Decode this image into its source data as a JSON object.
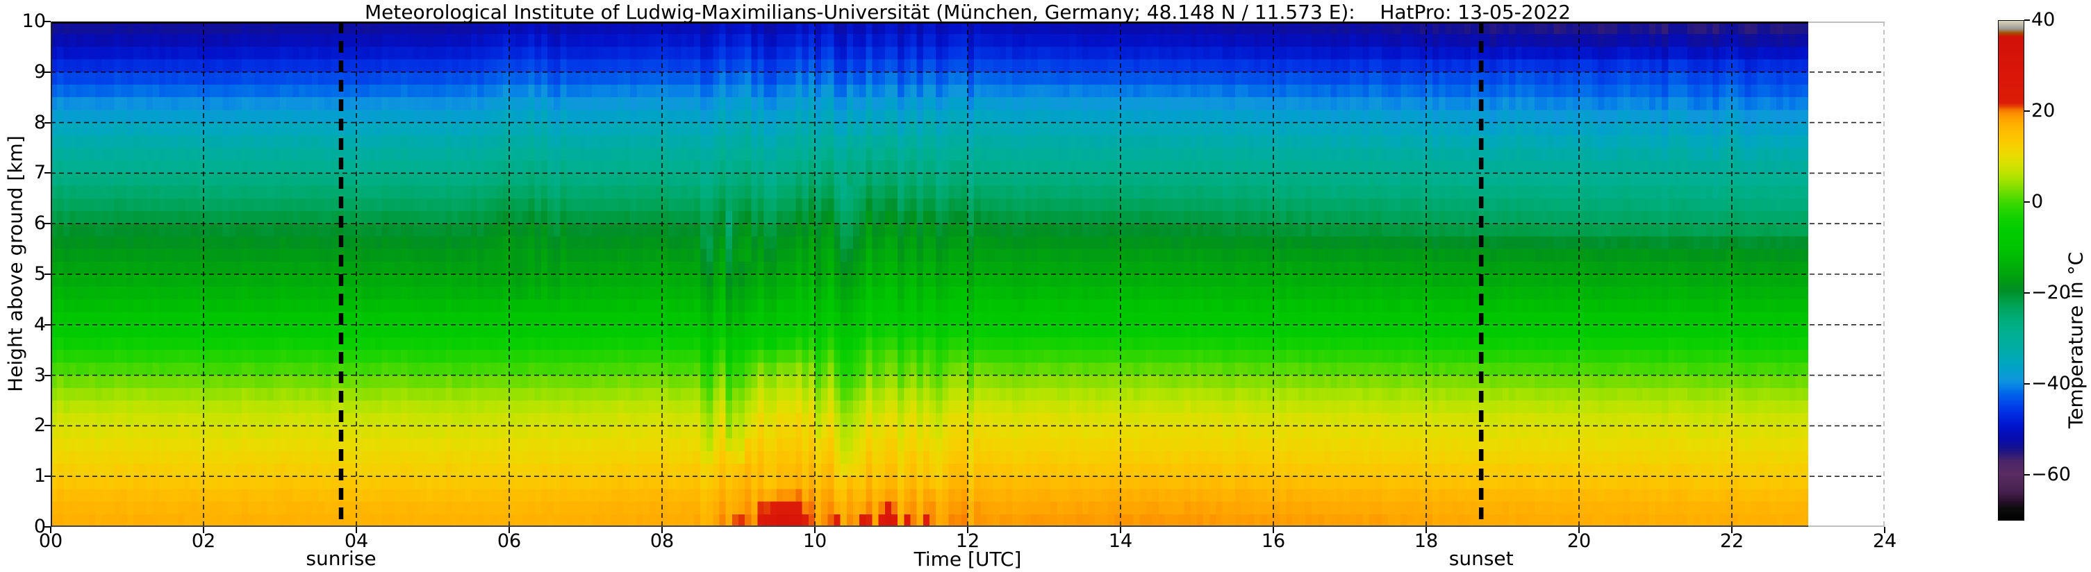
{
  "title": "Meteorological Institute of Ludwig-Maximilians-Universität (München, Germany; 48.148 N / 11.573 E):    HatPro: 13-05-2022",
  "axes": {
    "x": {
      "label": "Time [UTC]",
      "range_hours": [
        0,
        24
      ],
      "tick_values": [
        0,
        2,
        4,
        6,
        8,
        10,
        12,
        14,
        16,
        18,
        20,
        22,
        24
      ],
      "tick_labels": [
        "00",
        "02",
        "04",
        "06",
        "08",
        "10",
        "12",
        "14",
        "16",
        "18",
        "20",
        "22",
        "24"
      ]
    },
    "y": {
      "label": "Height above ground [km]",
      "range_km": [
        0,
        10
      ],
      "tick_values": [
        0,
        1,
        2,
        3,
        4,
        5,
        6,
        7,
        8,
        9,
        10
      ],
      "tick_labels": [
        "0",
        "1",
        "2",
        "3",
        "4",
        "5",
        "6",
        "7",
        "8",
        "9",
        "10"
      ]
    }
  },
  "annotations": {
    "sunrise": {
      "label": "sunrise",
      "time_utc": 3.8
    },
    "sunset": {
      "label": "sunset",
      "time_utc": 18.72
    }
  },
  "colorbar": {
    "label": "Temperature in °C",
    "range": [
      -70,
      40
    ],
    "tick_values": [
      40,
      20,
      0,
      -20,
      -40,
      -60
    ],
    "tick_labels": [
      "40",
      "20",
      "0",
      "−20",
      "−40",
      "−60"
    ],
    "stops": [
      [
        -70,
        "#000000"
      ],
      [
        -67.5,
        "#0c0c0c"
      ],
      [
        -66,
        "#261028"
      ],
      [
        -64,
        "#44204c"
      ],
      [
        -60,
        "#5a2c62"
      ],
      [
        -57,
        "#4a2468"
      ],
      [
        -55.5,
        "#2c1a7a"
      ],
      [
        -54,
        "#121092"
      ],
      [
        -52,
        "#080cae"
      ],
      [
        -50,
        "#0210c6"
      ],
      [
        -48,
        "#0020d6"
      ],
      [
        -46,
        "#0034e6"
      ],
      [
        -44,
        "#004cea"
      ],
      [
        -42,
        "#0068ea"
      ],
      [
        -40.5,
        "#0884e6"
      ],
      [
        -39,
        "#0f97dc"
      ],
      [
        -37,
        "#02a0cc"
      ],
      [
        -35,
        "#00a8bc"
      ],
      [
        -32,
        "#00aca2"
      ],
      [
        -29,
        "#00b092"
      ],
      [
        -26,
        "#00ac7a"
      ],
      [
        -23,
        "#00a45a"
      ],
      [
        -21,
        "#009a3e"
      ],
      [
        -19.5,
        "#008e26"
      ],
      [
        -18,
        "#009617"
      ],
      [
        -16,
        "#00a40e"
      ],
      [
        -13,
        "#00b406"
      ],
      [
        -10,
        "#00c400"
      ],
      [
        -6,
        "#00cc00"
      ],
      [
        -3,
        "#16d200"
      ],
      [
        0,
        "#3cd800"
      ],
      [
        2,
        "#66dc00"
      ],
      [
        4,
        "#92e000"
      ],
      [
        6,
        "#b6e400"
      ],
      [
        8,
        "#d2e200"
      ],
      [
        10,
        "#e8dc00"
      ],
      [
        12,
        "#f4d200"
      ],
      [
        14,
        "#fcc600"
      ],
      [
        16,
        "#ffb800"
      ],
      [
        18,
        "#ffa800"
      ],
      [
        19.5,
        "#fc9000"
      ],
      [
        20.5,
        "#f47000"
      ],
      [
        21.2,
        "#e43c04"
      ],
      [
        22,
        "#dc1c06"
      ],
      [
        30,
        "#d81408"
      ],
      [
        36.5,
        "#d01208"
      ],
      [
        37.3,
        "#a64e00"
      ],
      [
        38.3,
        "#9c9c9c"
      ],
      [
        39.2,
        "#c0bca8"
      ],
      [
        40,
        "#d8d4c0"
      ]
    ]
  },
  "chart_data": {
    "type": "heatmap",
    "title": "Temperature (°C) vs time (UTC) and height above ground (km), HatPro microwave radiometer, 13-05-2022",
    "x_hours": [
      0,
      1,
      2,
      3,
      4,
      5,
      6,
      7,
      8,
      9,
      10,
      11,
      12,
      13,
      14,
      15,
      16,
      17,
      18,
      19,
      20,
      21,
      22,
      23
    ],
    "data_end_hour": 23,
    "heights_km": [
      0,
      0.5,
      1,
      1.5,
      2,
      2.5,
      3,
      3.5,
      4,
      4.5,
      5,
      5.5,
      6,
      6.5,
      7,
      7.5,
      8,
      8.5,
      9,
      9.5,
      10
    ],
    "temperature_c": [
      [
        17.4,
        17.3,
        17.2,
        17.1,
        17.0,
        17.0,
        17.2,
        17.5,
        17.8,
        18.6,
        18.9,
        19.0,
        19.0,
        19.2,
        19.3,
        19.3,
        19.1,
        18.8,
        18.4,
        18.0,
        17.8,
        17.6,
        17.4,
        17.3
      ],
      [
        16.2,
        16.1,
        16.0,
        15.9,
        15.9,
        15.9,
        16.0,
        16.3,
        16.6,
        17.2,
        17.5,
        17.6,
        17.6,
        17.8,
        17.9,
        17.8,
        17.6,
        17.3,
        17.0,
        16.7,
        16.5,
        16.3,
        16.2,
        16.1
      ],
      [
        13.4,
        13.3,
        13.2,
        13.2,
        13.1,
        13.1,
        13.2,
        13.5,
        13.8,
        14.2,
        14.4,
        14.5,
        14.6,
        14.7,
        14.8,
        14.7,
        14.5,
        14.2,
        13.9,
        13.7,
        13.5,
        13.4,
        13.3,
        13.2
      ],
      [
        10.9,
        10.8,
        10.8,
        10.7,
        10.7,
        10.7,
        10.8,
        11.0,
        11.2,
        11.6,
        11.8,
        11.9,
        12.0,
        12.1,
        12.1,
        12.0,
        11.8,
        11.6,
        11.3,
        11.1,
        11.0,
        10.9,
        10.8,
        10.7
      ],
      [
        8.6,
        8.5,
        8.5,
        8.4,
        8.4,
        8.4,
        8.5,
        8.6,
        8.8,
        9.2,
        9.4,
        9.5,
        9.6,
        9.7,
        9.7,
        9.6,
        9.4,
        9.2,
        9.0,
        8.8,
        8.7,
        8.6,
        8.5,
        8.4
      ],
      [
        5.6,
        5.5,
        5.5,
        5.4,
        5.4,
        5.4,
        5.5,
        5.6,
        5.8,
        6.2,
        6.4,
        6.5,
        6.6,
        6.7,
        6.7,
        6.6,
        6.4,
        6.2,
        6.0,
        5.8,
        5.7,
        5.6,
        5.5,
        5.4
      ],
      [
        1.6,
        1.5,
        1.5,
        1.4,
        1.4,
        1.4,
        1.5,
        1.6,
        1.8,
        2.2,
        2.4,
        2.5,
        2.6,
        2.7,
        2.7,
        2.6,
        2.4,
        2.2,
        2.0,
        1.8,
        1.7,
        1.6,
        1.5,
        1.4
      ],
      [
        -3.2,
        -3.3,
        -3.3,
        -3.4,
        -3.4,
        -3.4,
        -3.3,
        -3.2,
        -3.0,
        -2.7,
        -2.5,
        -2.4,
        -2.3,
        -2.2,
        -2.2,
        -2.3,
        -2.5,
        -2.7,
        -2.9,
        -3.1,
        -3.2,
        -3.3,
        -3.4,
        -3.5
      ],
      [
        -8.2,
        -8.3,
        -8.3,
        -8.4,
        -8.4,
        -8.4,
        -8.3,
        -8.2,
        -8.0,
        -7.7,
        -7.5,
        -7.4,
        -7.3,
        -7.2,
        -7.2,
        -7.3,
        -7.5,
        -7.7,
        -7.9,
        -8.1,
        -8.2,
        -8.3,
        -8.4,
        -8.5
      ],
      [
        -12.1,
        -12.2,
        -12.2,
        -12.3,
        -12.3,
        -12.3,
        -12.2,
        -12.1,
        -11.9,
        -11.6,
        -11.5,
        -11.4,
        -11.3,
        -11.2,
        -11.2,
        -11.3,
        -11.5,
        -11.7,
        -11.9,
        -12.1,
        -12.2,
        -12.3,
        -12.4,
        -12.5
      ],
      [
        -15.4,
        -15.5,
        -15.5,
        -15.6,
        -15.6,
        -15.6,
        -15.5,
        -15.4,
        -15.2,
        -15.0,
        -14.9,
        -14.8,
        -14.8,
        -14.7,
        -14.7,
        -14.8,
        -15.0,
        -15.2,
        -15.4,
        -15.6,
        -15.7,
        -15.8,
        -15.9,
        -16.0
      ],
      [
        -17.9,
        -18.0,
        -18.0,
        -18.1,
        -18.1,
        -18.1,
        -18.0,
        -17.9,
        -17.8,
        -17.6,
        -17.5,
        -17.5,
        -17.5,
        -17.4,
        -17.5,
        -17.6,
        -17.8,
        -18.0,
        -18.2,
        -18.4,
        -18.5,
        -18.6,
        -18.7,
        -18.8
      ],
      [
        -20.4,
        -20.5,
        -20.5,
        -20.6,
        -20.6,
        -20.6,
        -20.5,
        -20.4,
        -20.3,
        -20.2,
        -20.1,
        -20.1,
        -20.2,
        -20.3,
        -20.5,
        -20.8,
        -21.2,
        -21.7,
        -22.3,
        -22.9,
        -23.3,
        -23.5,
        -23.6,
        -23.7
      ],
      [
        -23.9,
        -24.0,
        -24.0,
        -24.1,
        -24.1,
        -24.1,
        -24.0,
        -23.9,
        -23.8,
        -23.7,
        -23.6,
        -23.6,
        -23.7,
        -23.8,
        -24.0,
        -24.3,
        -24.7,
        -25.1,
        -25.6,
        -26.0,
        -26.3,
        -26.5,
        -26.6,
        -26.7
      ],
      [
        -27.7,
        -27.8,
        -27.8,
        -27.9,
        -27.9,
        -27.9,
        -27.8,
        -27.7,
        -27.6,
        -27.5,
        -27.4,
        -27.4,
        -27.5,
        -27.6,
        -27.8,
        -28.0,
        -28.3,
        -28.7,
        -29.1,
        -29.4,
        -29.6,
        -29.8,
        -29.9,
        -30.0
      ],
      [
        -31.9,
        -32.0,
        -32.0,
        -32.1,
        -32.1,
        -32.0,
        -31.9,
        -31.8,
        -31.6,
        -31.4,
        -31.3,
        -31.3,
        -31.4,
        -31.5,
        -31.7,
        -31.9,
        -32.2,
        -32.5,
        -32.8,
        -33.1,
        -33.3,
        -33.5,
        -33.6,
        -33.7
      ],
      [
        -36.2,
        -36.3,
        -36.3,
        -36.3,
        -36.2,
        -36.1,
        -35.9,
        -35.7,
        -35.4,
        -35.1,
        -35.0,
        -35.0,
        -35.1,
        -35.3,
        -35.5,
        -35.8,
        -36.1,
        -36.4,
        -36.7,
        -37.0,
        -37.2,
        -37.3,
        -37.4,
        -37.5
      ],
      [
        -40.6,
        -40.7,
        -40.7,
        -40.6,
        -40.5,
        -40.3,
        -40.0,
        -39.7,
        -39.4,
        -39.1,
        -39.0,
        -39.0,
        -39.2,
        -39.4,
        -39.7,
        -40.0,
        -40.3,
        -40.6,
        -40.9,
        -41.1,
        -41.3,
        -41.4,
        -41.5,
        -41.6
      ],
      [
        -45.6,
        -45.7,
        -45.6,
        -45.5,
        -45.3,
        -45.0,
        -44.6,
        -44.2,
        -43.8,
        -43.5,
        -43.4,
        -43.5,
        -43.7,
        -44.0,
        -44.3,
        -44.6,
        -44.9,
        -45.1,
        -45.0,
        -44.8,
        -44.7,
        -44.8,
        -45.0,
        -45.2
      ],
      [
        -50.6,
        -50.7,
        -50.6,
        -50.4,
        -50.1,
        -49.7,
        -49.2,
        -48.7,
        -48.2,
        -47.9,
        -47.8,
        -47.9,
        -48.2,
        -48.6,
        -49.0,
        -49.5,
        -50.0,
        -50.5,
        -51.0,
        -51.4,
        -51.6,
        -51.7,
        -51.6,
        -51.5
      ],
      [
        -54.3,
        -54.4,
        -54.3,
        -54.1,
        -53.8,
        -53.4,
        -52.9,
        -52.3,
        -51.8,
        -51.4,
        -51.3,
        -51.4,
        -51.7,
        -52.2,
        -52.7,
        -53.2,
        -53.7,
        -54.2,
        -54.8,
        -55.4,
        -55.7,
        -55.8,
        -55.7,
        -55.6
      ]
    ],
    "features": {
      "surface_warm_blobs": [
        {
          "time": 9.0,
          "width_h": 0.07,
          "top_km": 0.35,
          "dT": 6
        },
        {
          "time": 9.57,
          "width_h": 0.3,
          "top_km": 1.0,
          "dT": 14
        },
        {
          "time": 10.3,
          "width_h": 0.06,
          "top_km": 0.5,
          "dT": 8
        },
        {
          "time": 10.63,
          "width_h": 0.07,
          "top_km": 0.55,
          "dT": 9
        },
        {
          "time": 10.95,
          "width_h": 0.1,
          "top_km": 0.7,
          "dT": 11
        },
        {
          "time": 11.2,
          "width_h": 0.06,
          "top_km": 0.45,
          "dT": 8
        },
        {
          "time": 11.45,
          "width_h": 0.07,
          "top_km": 0.3,
          "dT": 5
        }
      ],
      "cold_streaks": [
        {
          "time": 8.62,
          "sigma_h": 0.05,
          "h0_km": 1.6,
          "h1_km": 5.5,
          "dT": -3
        },
        {
          "time": 8.88,
          "sigma_h": 0.04,
          "h0_km": 1.8,
          "h1_km": 6.0,
          "dT": -4.5
        },
        {
          "time": 9.02,
          "sigma_h": 0.05,
          "h0_km": 1.5,
          "h1_km": 5.0,
          "dT": -5
        },
        {
          "time": 9.12,
          "sigma_h": 0.03,
          "h0_km": 2.0,
          "h1_km": 5.0,
          "dT": -3.5
        },
        {
          "time": 10.08,
          "sigma_h": 0.04,
          "h0_km": 2.0,
          "h1_km": 5.0,
          "dT": -3
        },
        {
          "time": 10.45,
          "sigma_h": 0.06,
          "h0_km": 1.3,
          "h1_km": 6.5,
          "dT": -5
        },
        {
          "time": 11.55,
          "sigma_h": 0.05,
          "h0_km": 1.0,
          "h1_km": 3.0,
          "dT": -2.5
        }
      ],
      "warm_patches": [
        {
          "time": 9.45,
          "sigma_h": 0.3,
          "h0_km": 1.2,
          "h1_km": 3.2,
          "dT": 2.5
        },
        {
          "time": 6.1,
          "sigma_h": 0.3,
          "h0_km": 5.5,
          "h1_km": 9.8,
          "dT": 2.0
        },
        {
          "time": 10.8,
          "sigma_h": 0.5,
          "h0_km": 3.5,
          "h1_km": 7.5,
          "dT": 1.5
        }
      ]
    }
  }
}
